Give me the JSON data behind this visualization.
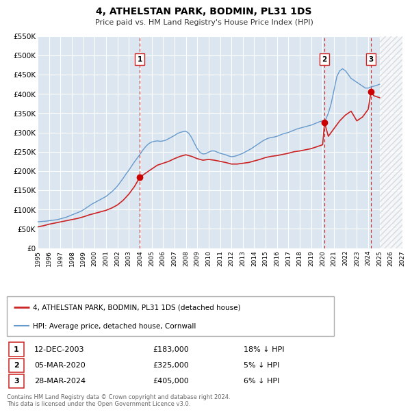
{
  "title": "4, ATHELSTAN PARK, BODMIN, PL31 1DS",
  "subtitle": "Price paid vs. HM Land Registry's House Price Index (HPI)",
  "background_color": "#ffffff",
  "plot_bg_color": "#dce6f0",
  "grid_color": "#ffffff",
  "ylim": [
    0,
    550000
  ],
  "yticks": [
    0,
    50000,
    100000,
    150000,
    200000,
    250000,
    300000,
    350000,
    400000,
    450000,
    500000,
    550000
  ],
  "ytick_labels": [
    "£0",
    "£50K",
    "£100K",
    "£150K",
    "£200K",
    "£250K",
    "£300K",
    "£350K",
    "£400K",
    "£450K",
    "£500K",
    "£550K"
  ],
  "xlim_start": 1995,
  "xlim_end": 2027,
  "xticks": [
    1995,
    1996,
    1997,
    1998,
    1999,
    2000,
    2001,
    2002,
    2003,
    2004,
    2005,
    2006,
    2007,
    2008,
    2009,
    2010,
    2011,
    2012,
    2013,
    2014,
    2015,
    2016,
    2017,
    2018,
    2019,
    2020,
    2021,
    2022,
    2023,
    2024,
    2025,
    2026,
    2027
  ],
  "hpi_color": "#6699cc",
  "price_color": "#cc2222",
  "sale_dot_color": "#cc0000",
  "vline_color": "#cc2222",
  "legend_label_price": "4, ATHELSTAN PARK, BODMIN, PL31 1DS (detached house)",
  "legend_label_hpi": "HPI: Average price, detached house, Cornwall",
  "sales": [
    {
      "date": 2003.95,
      "price": 183000,
      "label": "1"
    },
    {
      "date": 2020.17,
      "price": 325000,
      "label": "2"
    },
    {
      "date": 2024.24,
      "price": 405000,
      "label": "3"
    }
  ],
  "table_rows": [
    {
      "num": "1",
      "date": "12-DEC-2003",
      "price": "£183,000",
      "hpi": "18% ↓ HPI"
    },
    {
      "num": "2",
      "date": "05-MAR-2020",
      "price": "£325,000",
      "hpi": "5% ↓ HPI"
    },
    {
      "num": "3",
      "date": "28-MAR-2024",
      "price": "£405,000",
      "hpi": "6% ↓ HPI"
    }
  ],
  "footer": "Contains HM Land Registry data © Crown copyright and database right 2024.\nThis data is licensed under the Open Government Licence v3.0.",
  "hpi_data_x": [
    1995.0,
    1995.25,
    1995.5,
    1995.75,
    1996.0,
    1996.25,
    1996.5,
    1996.75,
    1997.0,
    1997.25,
    1997.5,
    1997.75,
    1998.0,
    1998.25,
    1998.5,
    1998.75,
    1999.0,
    1999.25,
    1999.5,
    1999.75,
    2000.0,
    2000.25,
    2000.5,
    2000.75,
    2001.0,
    2001.25,
    2001.5,
    2001.75,
    2002.0,
    2002.25,
    2002.5,
    2002.75,
    2003.0,
    2003.25,
    2003.5,
    2003.75,
    2004.0,
    2004.25,
    2004.5,
    2004.75,
    2005.0,
    2005.25,
    2005.5,
    2005.75,
    2006.0,
    2006.25,
    2006.5,
    2006.75,
    2007.0,
    2007.25,
    2007.5,
    2007.75,
    2008.0,
    2008.25,
    2008.5,
    2008.75,
    2009.0,
    2009.25,
    2009.5,
    2009.75,
    2010.0,
    2010.25,
    2010.5,
    2010.75,
    2011.0,
    2011.25,
    2011.5,
    2011.75,
    2012.0,
    2012.25,
    2012.5,
    2012.75,
    2013.0,
    2013.25,
    2013.5,
    2013.75,
    2014.0,
    2014.25,
    2014.5,
    2014.75,
    2015.0,
    2015.25,
    2015.5,
    2015.75,
    2016.0,
    2016.25,
    2016.5,
    2016.75,
    2017.0,
    2017.25,
    2017.5,
    2017.75,
    2018.0,
    2018.25,
    2018.5,
    2018.75,
    2019.0,
    2019.25,
    2019.5,
    2019.75,
    2020.0,
    2020.25,
    2020.5,
    2020.75,
    2021.0,
    2021.25,
    2021.5,
    2021.75,
    2022.0,
    2022.25,
    2022.5,
    2022.75,
    2023.0,
    2023.25,
    2023.5,
    2023.75,
    2024.0,
    2024.25,
    2024.5,
    2024.75,
    2025.0
  ],
  "hpi_data_y": [
    68000,
    69000,
    69500,
    70000,
    71000,
    72000,
    73000,
    74000,
    76000,
    78000,
    80000,
    83000,
    86000,
    89000,
    92000,
    95000,
    99000,
    104000,
    109000,
    114000,
    118000,
    122000,
    126000,
    130000,
    134000,
    140000,
    146000,
    153000,
    161000,
    171000,
    181000,
    192000,
    202000,
    213000,
    224000,
    234000,
    244000,
    255000,
    264000,
    271000,
    275000,
    277000,
    278000,
    277000,
    278000,
    280000,
    284000,
    288000,
    292000,
    297000,
    300000,
    302000,
    303000,
    298000,
    287000,
    272000,
    258000,
    248000,
    244000,
    245000,
    249000,
    252000,
    252000,
    249000,
    246000,
    244000,
    242000,
    239000,
    237000,
    238000,
    240000,
    243000,
    246000,
    250000,
    254000,
    258000,
    263000,
    268000,
    273000,
    278000,
    282000,
    285000,
    287000,
    288000,
    290000,
    293000,
    296000,
    298000,
    300000,
    303000,
    306000,
    309000,
    311000,
    313000,
    315000,
    317000,
    319000,
    322000,
    325000,
    328000,
    330000,
    332000,
    350000,
    375000,
    410000,
    445000,
    460000,
    465000,
    460000,
    450000,
    440000,
    435000,
    430000,
    425000,
    420000,
    415000,
    415000,
    418000,
    420000,
    422000,
    425000
  ],
  "price_data_x": [
    1995.0,
    1995.5,
    1996.0,
    1996.5,
    1997.0,
    1997.5,
    1998.0,
    1998.5,
    1999.0,
    1999.5,
    2000.0,
    2000.5,
    2001.0,
    2001.5,
    2002.0,
    2002.5,
    2003.0,
    2003.5,
    2003.95,
    2004.5,
    2005.0,
    2005.5,
    2006.0,
    2006.5,
    2007.0,
    2007.5,
    2008.0,
    2008.5,
    2009.0,
    2009.5,
    2010.0,
    2010.5,
    2011.0,
    2011.5,
    2012.0,
    2012.5,
    2013.0,
    2013.5,
    2014.0,
    2014.5,
    2015.0,
    2015.5,
    2016.0,
    2016.5,
    2017.0,
    2017.5,
    2018.0,
    2018.5,
    2019.0,
    2019.5,
    2020.0,
    2020.17,
    2020.5,
    2021.0,
    2021.5,
    2022.0,
    2022.5,
    2023.0,
    2023.5,
    2024.0,
    2024.24,
    2024.5,
    2025.0
  ],
  "price_data_y": [
    55000,
    58000,
    62000,
    65000,
    68000,
    71000,
    74000,
    77000,
    81000,
    86000,
    90000,
    94000,
    98000,
    104000,
    112000,
    124000,
    140000,
    160000,
    183000,
    195000,
    205000,
    215000,
    220000,
    225000,
    232000,
    238000,
    242000,
    238000,
    232000,
    228000,
    230000,
    228000,
    225000,
    222000,
    218000,
    218000,
    220000,
    222000,
    226000,
    230000,
    235000,
    238000,
    240000,
    243000,
    246000,
    250000,
    252000,
    255000,
    258000,
    263000,
    268000,
    325000,
    290000,
    310000,
    330000,
    345000,
    355000,
    330000,
    340000,
    360000,
    405000,
    395000,
    390000
  ]
}
